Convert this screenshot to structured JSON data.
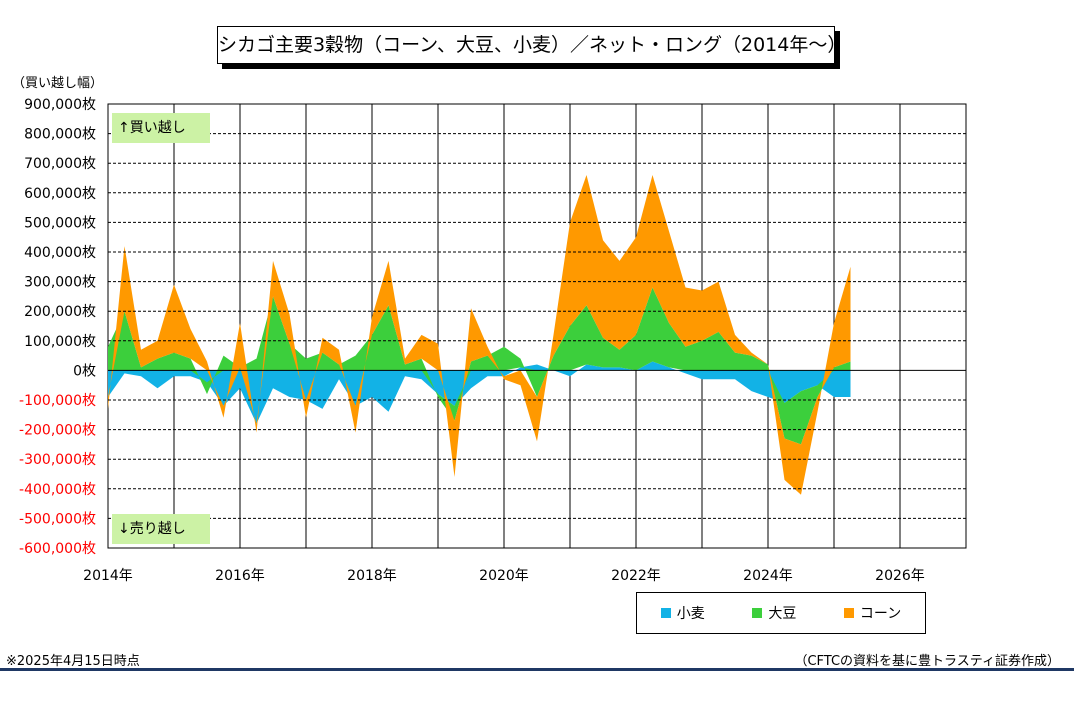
{
  "title": "シカゴ主要3穀物（コーン、大豆、小麦）／ネット・ロング（2014年～）",
  "unit_label": "（買い越し幅）",
  "tag_up": "↑買い越し",
  "tag_down": "↓売り越し",
  "note": "※2025年4月15日時点",
  "source": "（CFTCの資料を基に豊トラスティ証券作成）",
  "colors": {
    "wheat": "#12b2e6",
    "soy": "#3ccf3c",
    "corn": "#ff9900",
    "negative_tick": "#ff0000",
    "tag_bg": "#ccf2a5"
  },
  "chart_data": {
    "type": "area",
    "stacked": true,
    "x_unit": "year",
    "xlim": [
      2014,
      2027
    ],
    "x_ticks": [
      2014,
      2016,
      2018,
      2020,
      2022,
      2024,
      2026
    ],
    "x_tick_labels": [
      "2014年",
      "2016年",
      "2018年",
      "2020年",
      "2022年",
      "2024年",
      "2026年"
    ],
    "ylim": [
      -600000,
      900000
    ],
    "y_ticks": [
      900000,
      800000,
      700000,
      600000,
      500000,
      400000,
      300000,
      200000,
      100000,
      0,
      -100000,
      -200000,
      -300000,
      -400000,
      -500000,
      -600000
    ],
    "y_tick_labels": [
      "900,000枚",
      "800,000枚",
      "700,000枚",
      "600,000枚",
      "500,000枚",
      "400,000枚",
      "300,000枚",
      "200,000枚",
      "100,000枚",
      "0枚",
      "-100,000枚",
      "-200,000枚",
      "-300,000枚",
      "-400,000枚",
      "-500,000枚",
      "-600,000枚"
    ],
    "grid": true,
    "legend_position": "bottom-right",
    "x": [
      2014.0,
      2014.25,
      2014.5,
      2014.75,
      2015.0,
      2015.25,
      2015.5,
      2015.75,
      2016.0,
      2016.25,
      2016.5,
      2016.75,
      2017.0,
      2017.25,
      2017.5,
      2017.75,
      2018.0,
      2018.25,
      2018.5,
      2018.75,
      2019.0,
      2019.25,
      2019.5,
      2019.75,
      2020.0,
      2020.25,
      2020.5,
      2020.75,
      2021.0,
      2021.25,
      2021.5,
      2021.75,
      2022.0,
      2022.25,
      2022.5,
      2022.75,
      2023.0,
      2023.25,
      2023.5,
      2023.75,
      2024.0,
      2024.25,
      2024.5,
      2024.75,
      2025.0,
      2025.25
    ],
    "series": [
      {
        "name": "小麦",
        "values": [
          -90000,
          -10000,
          -20000,
          -60000,
          -20000,
          -20000,
          -40000,
          -120000,
          -60000,
          -180000,
          -60000,
          -90000,
          -100000,
          -130000,
          -30000,
          -120000,
          -90000,
          -140000,
          -20000,
          -30000,
          -80000,
          -120000,
          -60000,
          -20000,
          -20000,
          10000,
          20000,
          0,
          -20000,
          20000,
          10000,
          10000,
          0,
          30000,
          10000,
          -10000,
          -30000,
          -30000,
          -30000,
          -70000,
          -90000,
          -110000,
          -70000,
          -50000,
          -90000,
          -90000
        ]
      },
      {
        "name": "大豆",
        "values": [
          80000,
          200000,
          10000,
          40000,
          60000,
          40000,
          -40000,
          50000,
          10000,
          40000,
          250000,
          90000,
          40000,
          60000,
          20000,
          50000,
          120000,
          220000,
          20000,
          40000,
          -10000,
          -50000,
          30000,
          50000,
          80000,
          30000,
          -90000,
          50000,
          150000,
          200000,
          100000,
          60000,
          120000,
          250000,
          150000,
          80000,
          100000,
          130000,
          60000,
          50000,
          20000,
          -120000,
          -180000,
          -40000,
          10000,
          30000
        ]
      },
      {
        "name": "コーン",
        "values": [
          -40000,
          220000,
          60000,
          60000,
          230000,
          100000,
          30000,
          -40000,
          150000,
          -30000,
          120000,
          100000,
          -60000,
          50000,
          50000,
          -90000,
          60000,
          150000,
          20000,
          80000,
          90000,
          -190000,
          180000,
          30000,
          -10000,
          -50000,
          -150000,
          70000,
          350000,
          440000,
          330000,
          300000,
          330000,
          380000,
          310000,
          200000,
          170000,
          170000,
          60000,
          10000,
          0,
          -140000,
          -170000,
          -50000,
          150000,
          320000
        ]
      }
    ]
  }
}
